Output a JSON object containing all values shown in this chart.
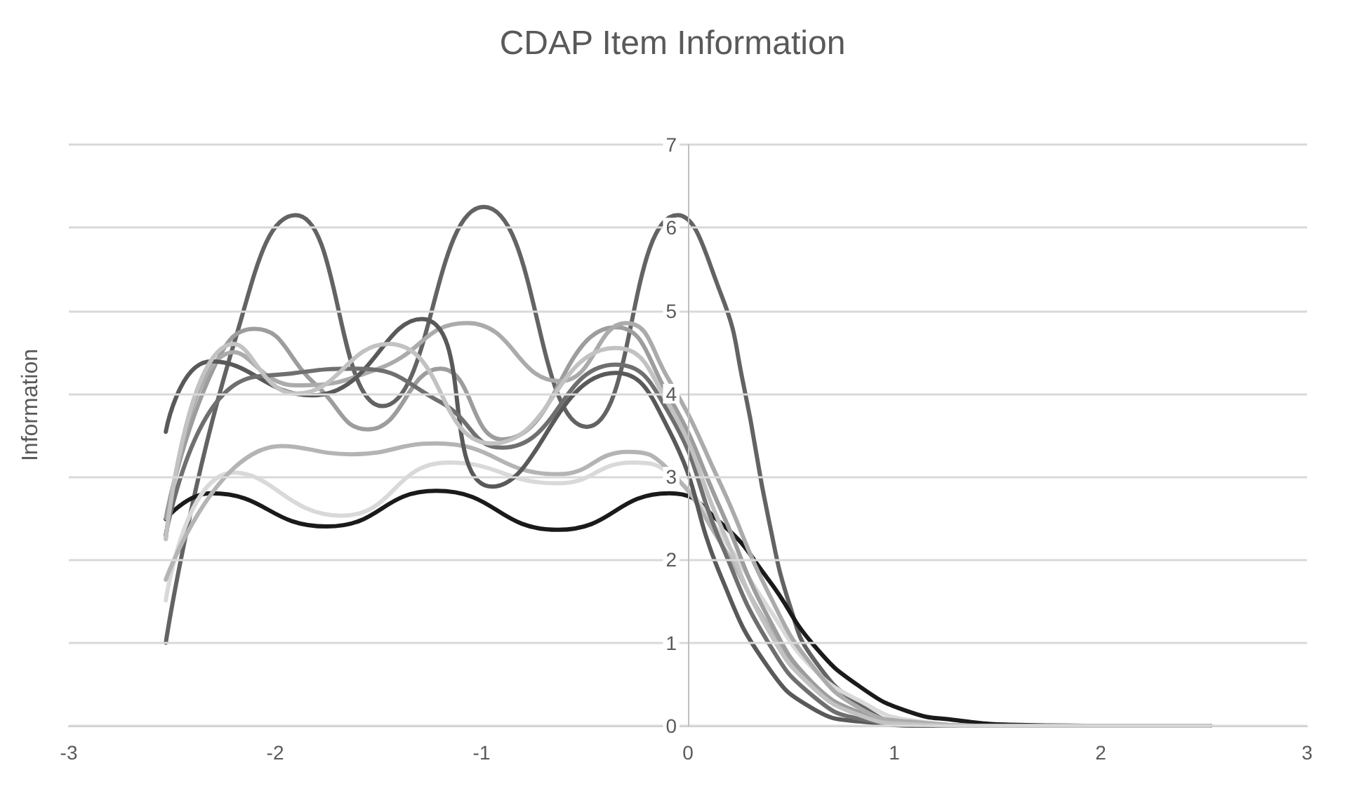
{
  "chart_data": {
    "type": "line",
    "title": "CDAP Item Information",
    "ylabel": "Information",
    "xlim": [
      -3,
      3
    ],
    "xticks": [
      -3,
      -2,
      -1,
      0,
      1,
      2,
      3
    ],
    "ylim": [
      0,
      7
    ],
    "yticks": [
      0,
      1,
      2,
      3,
      4,
      5,
      6,
      7
    ],
    "grid": "y",
    "marker": "none",
    "line_style": "solid",
    "series": [
      {
        "color": "#636363",
        "x": [
          -2.53,
          -2.2,
          -1.9,
          -1.48,
          -0.99,
          -0.49,
          -0.05,
          0.16,
          0.27,
          0.39,
          0.5,
          0.61,
          0.84,
          1.07,
          1.5,
          2.0,
          2.53
        ],
        "values": [
          1.0,
          4.6,
          6.15,
          3.85,
          6.25,
          3.6,
          6.15,
          5.2,
          4.1,
          2.5,
          1.4,
          0.8,
          0.24,
          0.03,
          0,
          0,
          0
        ]
      },
      {
        "color": "#1a1a1a",
        "x": [
          -2.53,
          -2.31,
          -1.75,
          -1.22,
          -0.63,
          -0.09,
          0.16,
          0.39,
          0.61,
          0.84,
          1.07,
          1.29,
          1.6,
          2.0,
          2.53
        ],
        "values": [
          2.49,
          2.8,
          2.4,
          2.83,
          2.36,
          2.8,
          2.44,
          1.76,
          0.97,
          0.46,
          0.17,
          0.07,
          0.01,
          0,
          0
        ]
      },
      {
        "color": "#d9d9d9",
        "x": [
          -2.53,
          -2.2,
          -1.68,
          -1.16,
          -0.63,
          -0.27,
          -0.07,
          0.16,
          0.39,
          0.61,
          0.84,
          1.07,
          1.5,
          2.0,
          2.53
        ],
        "values": [
          1.51,
          3.05,
          2.53,
          3.17,
          2.92,
          3.17,
          3.0,
          2.3,
          1.42,
          0.68,
          0.29,
          0.07,
          0,
          0,
          0
        ]
      },
      {
        "color": "#b4b4b4",
        "x": [
          -2.53,
          -1.97,
          -1.63,
          -1.22,
          -0.63,
          -0.29,
          -0.1,
          0.16,
          0.39,
          0.61,
          0.84,
          1.07,
          1.5,
          2.0,
          2.53
        ],
        "values": [
          1.76,
          3.37,
          3.27,
          3.4,
          3.03,
          3.3,
          3.1,
          2.2,
          1.2,
          0.5,
          0.15,
          0.04,
          0,
          0,
          0
        ]
      },
      {
        "color": "#9d9d9d",
        "x": [
          -2.53,
          -2.3,
          -2.1,
          -1.8,
          -1.55,
          -1.2,
          -0.9,
          -0.35,
          -0.1,
          0.16,
          0.39,
          0.61,
          0.84,
          1.07,
          1.5,
          2.0,
          2.53
        ],
        "values": [
          2.5,
          4.3,
          4.78,
          4.1,
          3.57,
          4.3,
          3.45,
          4.8,
          4.0,
          2.6,
          1.3,
          0.5,
          0.15,
          0.03,
          0,
          0,
          0
        ]
      },
      {
        "color": "#ababab",
        "x": [
          -2.53,
          -2.2,
          -1.9,
          -1.5,
          -1.07,
          -0.62,
          -0.3,
          -0.1,
          0.16,
          0.39,
          0.61,
          0.84,
          1.07,
          1.5,
          2.0,
          2.53
        ],
        "values": [
          2.25,
          4.5,
          4.1,
          4.3,
          4.85,
          4.15,
          4.85,
          4.2,
          2.9,
          1.6,
          0.7,
          0.2,
          0.05,
          0,
          0,
          0
        ]
      },
      {
        "color": "#595959",
        "x": [
          -2.53,
          -2.31,
          -1.82,
          -1.29,
          -0.95,
          -0.35,
          -0.1,
          0.16,
          0.39,
          0.61,
          0.84,
          1.2,
          1.6,
          2.0,
          2.53
        ],
        "values": [
          3.54,
          4.39,
          3.98,
          4.9,
          2.88,
          4.25,
          3.6,
          1.8,
          0.7,
          0.2,
          0.05,
          0,
          0,
          0,
          0
        ]
      },
      {
        "color": "#6f6f6f",
        "x": [
          -2.53,
          -2.2,
          -1.9,
          -1.6,
          -1.2,
          -0.9,
          -0.35,
          -0.1,
          0.16,
          0.39,
          0.61,
          0.84,
          1.2,
          1.6,
          2.0,
          2.53
        ],
        "values": [
          2.3,
          4.1,
          4.25,
          4.3,
          3.9,
          3.35,
          4.35,
          3.8,
          2.2,
          1.0,
          0.35,
          0.08,
          0,
          0,
          0,
          0
        ]
      },
      {
        "color": "#c2c2c2",
        "x": [
          -2.53,
          -2.2,
          -1.9,
          -1.45,
          -0.95,
          -0.35,
          -0.1,
          0.16,
          0.39,
          0.61,
          0.84,
          1.07,
          1.5,
          2.0,
          2.53
        ],
        "values": [
          2.25,
          4.6,
          4.0,
          4.6,
          3.4,
          4.55,
          3.9,
          2.4,
          1.15,
          0.45,
          0.12,
          0.02,
          0,
          0,
          0
        ]
      }
    ]
  }
}
